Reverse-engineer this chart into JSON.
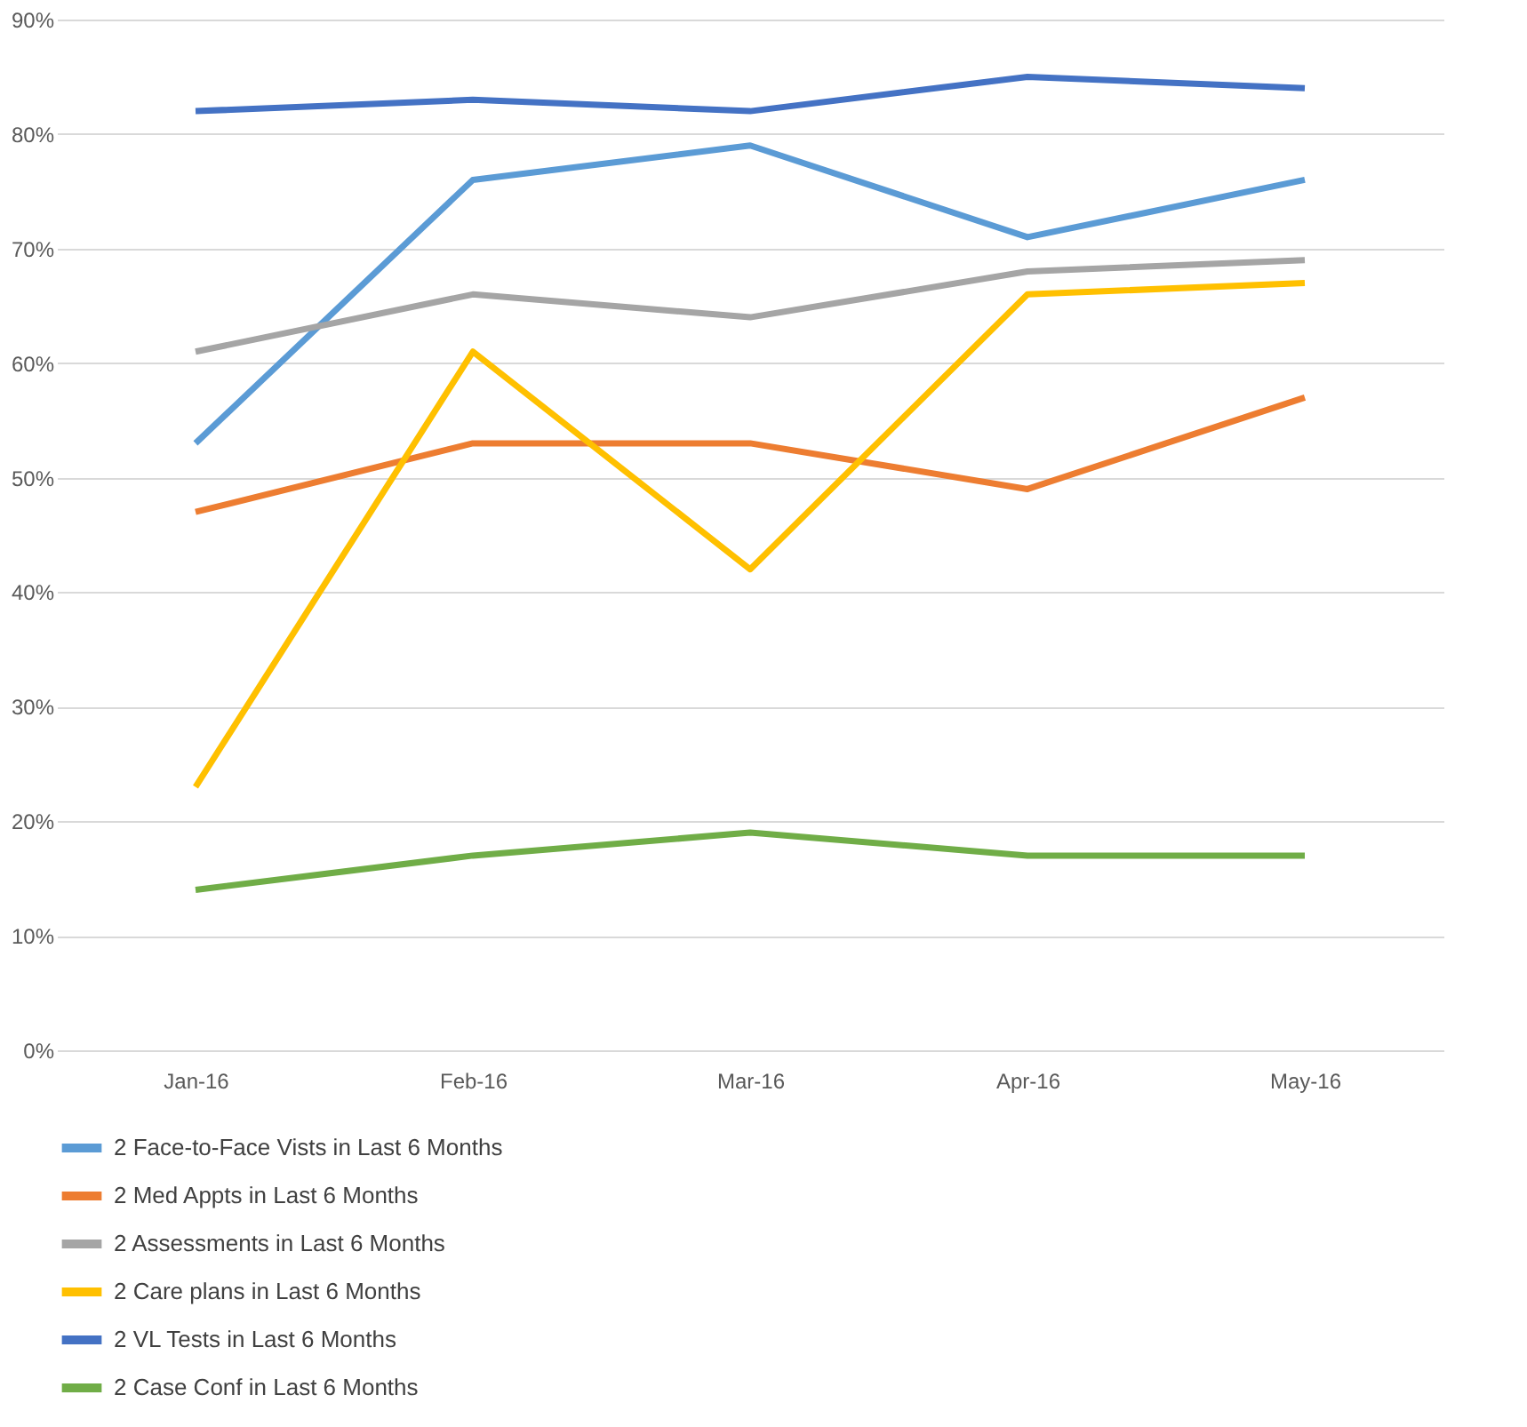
{
  "chart_data": {
    "type": "line",
    "categories": [
      "Jan-16",
      "Feb-16",
      "Mar-16",
      "Apr-16",
      "May-16"
    ],
    "series": [
      {
        "name": "2 Face-to-Face Vists in Last 6 Months",
        "color": "#5b9bd5",
        "values": [
          53,
          76,
          79,
          71,
          76
        ]
      },
      {
        "name": "2 Med Appts in Last 6 Months",
        "color": "#ed7d31",
        "values": [
          47,
          53,
          53,
          49,
          57
        ]
      },
      {
        "name": "2 Assessments in Last 6 Months",
        "color": "#a5a5a5",
        "values": [
          61,
          66,
          64,
          68,
          69
        ]
      },
      {
        "name": "2 Care plans in Last 6 Months",
        "color": "#ffc000",
        "values": [
          23,
          61,
          42,
          66,
          67
        ]
      },
      {
        "name": "2 VL Tests in Last 6 Months",
        "color": "#4472c4",
        "values": [
          82,
          83,
          82,
          85,
          84
        ]
      },
      {
        "name": "2 Case Conf in Last 6 Months",
        "color": "#70ad47",
        "values": [
          14,
          17,
          19,
          17,
          17
        ]
      }
    ],
    "ylim": [
      0,
      90
    ],
    "yticks": [
      {
        "value": 0,
        "label": "0%"
      },
      {
        "value": 10,
        "label": "10%"
      },
      {
        "value": 20,
        "label": "20%"
      },
      {
        "value": 30,
        "label": "30%"
      },
      {
        "value": 40,
        "label": "40%"
      },
      {
        "value": 50,
        "label": "50%"
      },
      {
        "value": 60,
        "label": "60%"
      },
      {
        "value": 70,
        "label": "70%"
      },
      {
        "value": 80,
        "label": "80%"
      },
      {
        "value": 90,
        "label": "90%"
      }
    ],
    "grid": "y",
    "legend": "bottom",
    "marker": "none",
    "line_style": "solid"
  }
}
